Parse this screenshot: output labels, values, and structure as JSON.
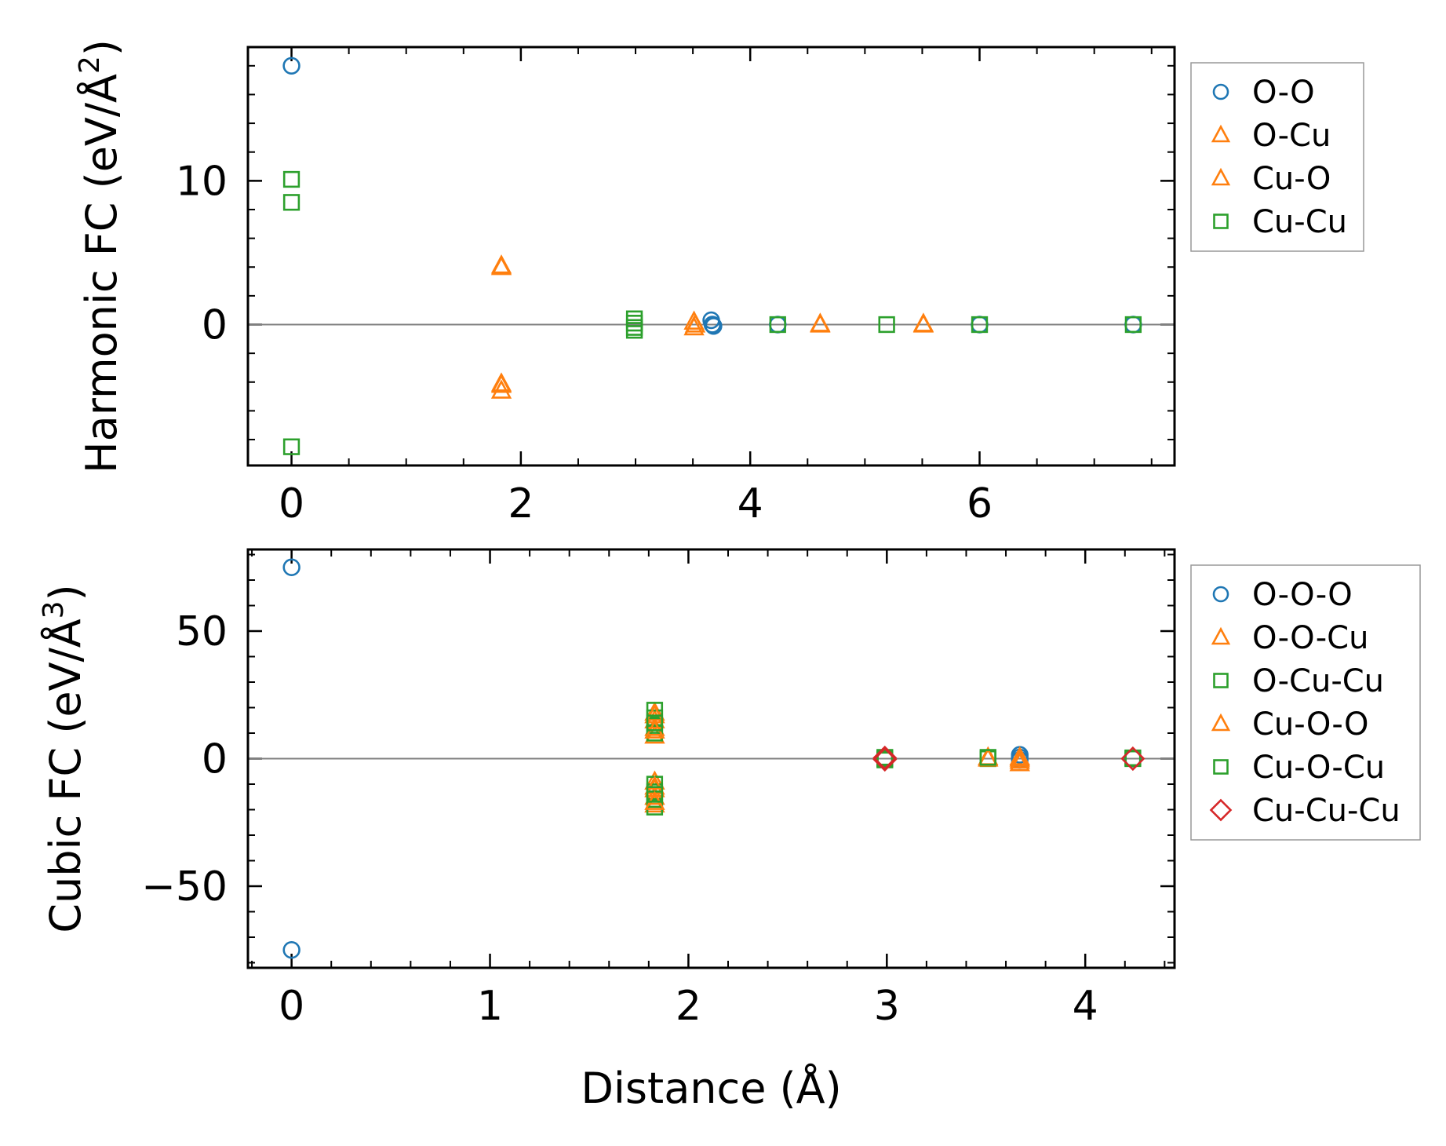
{
  "chart_data": [
    {
      "type": "scatter",
      "title": "",
      "xlabel": "",
      "ylabel": "Harmonic FC (eV/Å²)",
      "ylabel_parts": [
        "Harmonic FC (eV/Å",
        "2",
        ")"
      ],
      "xlim": [
        -0.38,
        7.7
      ],
      "ylim": [
        -9.8,
        19.3
      ],
      "xticks": [
        0,
        2,
        4,
        6
      ],
      "xtick_labels": [
        "0",
        "2",
        "4",
        "6"
      ],
      "yticks": [
        0,
        10
      ],
      "ytick_labels": [
        "0",
        "10"
      ],
      "x_minor_step": 0.5,
      "y_minor_step": 2,
      "zero_line": true,
      "grid": false,
      "legend_position": "outside-right",
      "series": [
        {
          "name": "O-O",
          "marker": "circle",
          "color": "#1f77b4",
          "points": [
            [
              0,
              18.0
            ],
            [
              3.66,
              0.3
            ],
            [
              3.67,
              0.0
            ],
            [
              3.68,
              -0.1
            ],
            [
              4.24,
              0.0
            ],
            [
              6.0,
              0.0
            ],
            [
              7.34,
              0.0
            ]
          ]
        },
        {
          "name": "O-Cu",
          "marker": "triangle",
          "color": "#ff7f0e",
          "points": [
            [
              1.83,
              4.1
            ],
            [
              1.83,
              -4.1
            ],
            [
              1.83,
              -4.6
            ],
            [
              3.51,
              0.2
            ],
            [
              3.51,
              -0.2
            ],
            [
              4.61,
              0.0
            ],
            [
              5.51,
              0.0
            ]
          ]
        },
        {
          "name": "Cu-O",
          "marker": "triangle",
          "color": "#ff7f0e",
          "points": [
            [
              1.83,
              4.0
            ],
            [
              1.83,
              -4.2
            ],
            [
              3.52,
              0.0
            ],
            [
              4.61,
              0.05
            ],
            [
              5.51,
              0.05
            ]
          ]
        },
        {
          "name": "Cu-Cu",
          "marker": "square",
          "color": "#2ca02c",
          "points": [
            [
              0,
              10.1
            ],
            [
              0,
              8.5
            ],
            [
              0,
              -8.5
            ],
            [
              2.99,
              0.4
            ],
            [
              2.99,
              0.1
            ],
            [
              2.99,
              -0.2
            ],
            [
              2.99,
              -0.4
            ],
            [
              4.24,
              0.0
            ],
            [
              5.19,
              0.0
            ],
            [
              6.0,
              0.0
            ],
            [
              7.34,
              0.0
            ]
          ]
        }
      ]
    },
    {
      "type": "scatter",
      "title": "",
      "xlabel": "Distance (Å)",
      "ylabel": "Cubic FC (eV/Å³)",
      "ylabel_parts": [
        "Cubic FC (eV/Å",
        "3",
        ")"
      ],
      "xlim": [
        -0.22,
        4.45
      ],
      "ylim": [
        -82,
        82
      ],
      "xticks": [
        0,
        1,
        2,
        3,
        4
      ],
      "xtick_labels": [
        "0",
        "1",
        "2",
        "3",
        "4"
      ],
      "yticks": [
        -50,
        0,
        50
      ],
      "ytick_labels": [
        "−50",
        "0",
        "50"
      ],
      "x_minor_step": 0.2,
      "y_minor_step": 10,
      "zero_line": true,
      "grid": false,
      "legend_position": "outside-right",
      "series": [
        {
          "name": "O-O-O",
          "marker": "circle",
          "color": "#1f77b4",
          "points": [
            [
              0,
              75.0
            ],
            [
              0,
              -75.0
            ],
            [
              3.67,
              1.5
            ],
            [
              3.67,
              0.5
            ],
            [
              3.67,
              -0.5
            ],
            [
              4.24,
              0.0
            ]
          ]
        },
        {
          "name": "O-O-Cu",
          "marker": "triangle",
          "color": "#ff7f0e",
          "points": [
            [
              1.83,
              18
            ],
            [
              1.83,
              15
            ],
            [
              1.83,
              12
            ],
            [
              1.83,
              9
            ],
            [
              1.83,
              -9
            ],
            [
              1.83,
              -12
            ],
            [
              1.83,
              -15
            ],
            [
              1.83,
              -18
            ],
            [
              3.51,
              0.5
            ],
            [
              3.67,
              0.5
            ],
            [
              3.67,
              -0.8
            ],
            [
              3.67,
              -1.8
            ]
          ]
        },
        {
          "name": "O-Cu-Cu",
          "marker": "square",
          "color": "#2ca02c",
          "points": [
            [
              1.83,
              19
            ],
            [
              1.83,
              16
            ],
            [
              1.83,
              13
            ],
            [
              1.83,
              10
            ],
            [
              1.83,
              -10
            ],
            [
              1.83,
              -13
            ],
            [
              1.83,
              -16
            ],
            [
              1.83,
              -19
            ],
            [
              2.99,
              0.5
            ],
            [
              2.99,
              -0.5
            ],
            [
              3.51,
              0.0
            ],
            [
              4.24,
              0.0
            ]
          ]
        },
        {
          "name": "Cu-O-O",
          "marker": "triangle",
          "color": "#ff7f0e",
          "points": [
            [
              1.83,
              17
            ],
            [
              1.83,
              11
            ],
            [
              1.83,
              -11
            ],
            [
              1.83,
              -17
            ],
            [
              3.51,
              0.0
            ],
            [
              3.67,
              0.0
            ]
          ]
        },
        {
          "name": "Cu-O-Cu",
          "marker": "square",
          "color": "#2ca02c",
          "points": [
            [
              1.83,
              14
            ],
            [
              1.83,
              -14
            ],
            [
              2.99,
              0.0
            ],
            [
              3.51,
              0.5
            ],
            [
              4.24,
              0.3
            ]
          ]
        },
        {
          "name": "Cu-Cu-Cu",
          "marker": "diamond",
          "color": "#d62728",
          "points": [
            [
              2.99,
              0.3
            ],
            [
              2.99,
              -0.3
            ],
            [
              4.24,
              0.0
            ]
          ]
        }
      ]
    }
  ]
}
